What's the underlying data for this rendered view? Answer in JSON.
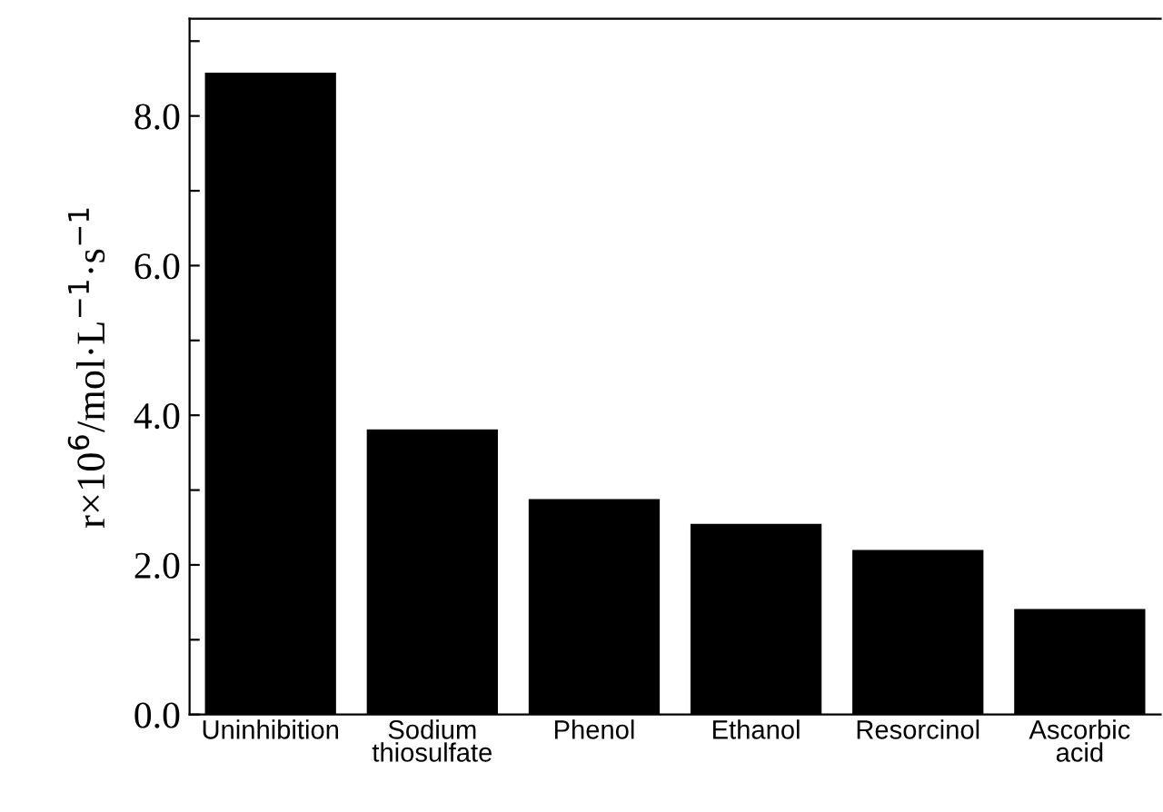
{
  "chart_data": {
    "type": "bar",
    "ylabel": "r×10$^{6}$/mol·L$^{−1}$·s$^{−1}$",
    "categories": [
      "Uninhibition",
      "Sodium\nthiosulfate",
      "Phenol",
      "Ethanol",
      "Resorcinol",
      "Ascorbic\nacid"
    ],
    "values": [
      8.58,
      3.81,
      2.88,
      2.55,
      2.2,
      1.41
    ],
    "color": "#000000",
    "ylim": [
      0,
      9.3
    ],
    "yticks": [
      {
        "value": 0,
        "label": "0.0"
      },
      {
        "value": 1,
        "label": null
      },
      {
        "value": 2,
        "label": "2.0"
      },
      {
        "value": 3,
        "label": null
      },
      {
        "value": 4,
        "label": "4.0"
      },
      {
        "value": 5,
        "label": null
      },
      {
        "value": 6,
        "label": "6.0"
      },
      {
        "value": 7,
        "label": null
      },
      {
        "value": 8,
        "label": "8.0"
      },
      {
        "value": 9,
        "label": null
      }
    ],
    "grid": false
  }
}
